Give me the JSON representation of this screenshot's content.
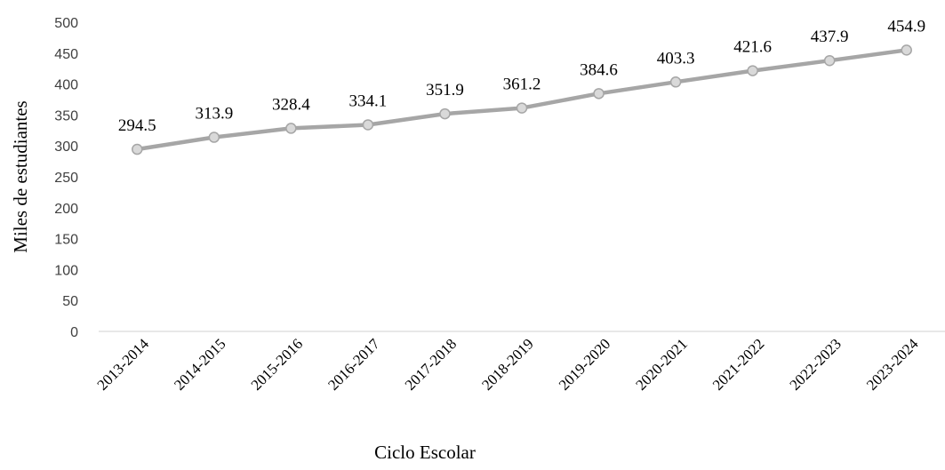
{
  "chart_data": {
    "type": "line",
    "title": "",
    "xlabel": "Ciclo Escolar",
    "ylabel": "Miles de estudiantes",
    "ylim": [
      0,
      500
    ],
    "yticks": [
      0,
      50,
      100,
      150,
      200,
      250,
      300,
      350,
      400,
      450,
      500
    ],
    "grid": false,
    "legend": "none",
    "categories": [
      "2013-2014",
      "2014-2015",
      "2015-2016",
      "2016-2017",
      "2017-2018",
      "2018-2019",
      "2019-2020",
      "2020-2021",
      "2021-2022",
      "2022-2023",
      "2023-2024"
    ],
    "series": [
      {
        "values": [
          294.5,
          313.9,
          328.4,
          334.1,
          351.9,
          361.2,
          384.6,
          403.3,
          421.6,
          437.9,
          454.9
        ],
        "labels": [
          "294.5",
          "313.9",
          "328.4",
          "334.1",
          "351.9",
          "361.2",
          "384.6",
          "403.3",
          "421.6",
          "437.9",
          "454.9"
        ],
        "line_color": "#a6a6a6",
        "marker_fill": "#d9d9d9",
        "marker_stroke": "#a6a6a6"
      }
    ],
    "axis_color": "#d9d9d9"
  }
}
